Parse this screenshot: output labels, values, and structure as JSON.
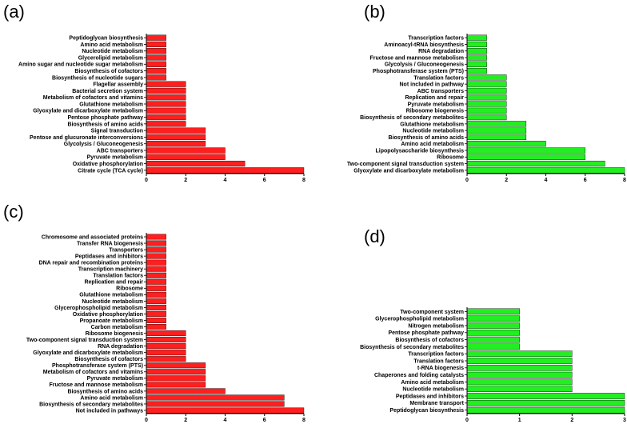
{
  "chart_data": [
    {
      "type": "bar",
      "orientation": "horizontal",
      "panel": "(a)",
      "bar_color": "#ff1f1f",
      "xlim": [
        0,
        8
      ],
      "xticks": [
        "0",
        "2",
        "4",
        "6",
        "8"
      ],
      "grid": false,
      "categories": [
        "Peptidoglycan biosynthesis",
        "Amino acid metabolism",
        "Nucleotide metabolism",
        "Glycerolipid metabolism",
        "Amino sugar and nucleotide sugar metabolism",
        "Biosynthesis of cofactors",
        "Biosynthesis of nucleotide sugars",
        "Flagellar assembly",
        "Bacterial secretion system",
        "Metabolism of cofactors and vitamins",
        "Glutathione metabolism",
        "Glyoxylate and dicarboxylate metabolism",
        "Pentose phosphate pathway",
        "Biosynthesis of amino acids",
        "Signal transduction",
        "Pentose and glucuronate interconversions",
        "Glycolysis / Gluconeogenesis",
        "ABC transporters",
        "Pyruvate metabolism",
        "Oxidative phosphorylation",
        "Citrate cycle (TCA cycle)"
      ],
      "values": [
        1,
        1,
        1,
        1,
        1,
        1,
        1,
        2,
        2,
        2,
        2,
        2,
        2,
        2,
        3,
        3,
        3,
        4,
        4,
        5,
        8
      ]
    },
    {
      "type": "bar",
      "orientation": "horizontal",
      "panel": "(b)",
      "bar_color": "#22ee22",
      "xlim": [
        0,
        8
      ],
      "xticks": [
        "0",
        "2",
        "4",
        "6",
        "8"
      ],
      "grid": false,
      "categories": [
        "Transcription factors",
        "Aminoacyl-tRNA biosynthesis",
        "RNA degradation",
        "Fructose and mannose metabolism",
        "Glycolysis / Gluconeogenesis",
        "Phosphotransferase system (PTS)",
        "Translation factors",
        "Not included in pathway",
        "ABC transporters",
        "Replication and repair",
        "Pyruvate metabolism",
        "Ribosome biogenesis",
        "Biosynthesis of secondary metabolites",
        "Glutathione metabolism",
        "Nucleotide metabolism",
        "Biosynthesis of amino acids",
        "Amino acid metabolism",
        "Lipopolysaccharide biosynthesis",
        "Ribosome",
        "Two-component signal transduction system",
        "Glyoxylate and dicarboxylate metabolism"
      ],
      "values": [
        1,
        1,
        1,
        1,
        1,
        1,
        2,
        2,
        2,
        2,
        2,
        2,
        2,
        3,
        3,
        3,
        4,
        6,
        6,
        7,
        8
      ]
    },
    {
      "type": "bar",
      "orientation": "horizontal",
      "panel": "(c)",
      "bar_color": "#ff1f1f",
      "xlim": [
        0,
        8
      ],
      "xticks": [
        "0",
        "2",
        "4",
        "6",
        "8"
      ],
      "grid": false,
      "categories": [
        "Chromosome and associated proteins",
        "Transfer RNA biogenesis",
        "Transporters",
        "Peptidases and inhibitors",
        "DNA repair and recombination proteins",
        "Transcription machinery",
        "Translation factors",
        "Replication and repair",
        "Ribosome",
        "Glutathione metabolism",
        "Nucleotide metabolism",
        "Glycerophospholipid metabolism",
        "Oxidative phosphorylation",
        "Propanoate metabolism",
        "Carbon metabolism",
        "Ribosome biogenesis",
        "Two-component signal transduction system",
        "RNA degradation",
        "Glyoxylate and dicarboxylate metabolism",
        "Biosynthesis of cofactors",
        "Phosphotransferase system (PTS)",
        "Metabolism of cofactors and vitamins",
        "Pyruvate metabolism",
        "Fructose and mannose metabolism",
        "Biosynthesis of amino acids",
        "Amino acid metabolism",
        "Biosynthesis of secondary metabolites",
        "Not included in pathways"
      ],
      "values": [
        1,
        1,
        1,
        1,
        1,
        1,
        1,
        1,
        1,
        1,
        1,
        1,
        1,
        1,
        1,
        2,
        2,
        2,
        2,
        2,
        3,
        3,
        3,
        3,
        4,
        7,
        7,
        8
      ]
    },
    {
      "type": "bar",
      "orientation": "horizontal",
      "panel": "(d)",
      "bar_color": "#22ee22",
      "xlim": [
        0,
        3
      ],
      "xticks": [
        "0",
        "1",
        "2",
        "3"
      ],
      "grid": false,
      "categories": [
        "Two-component system",
        "Glycerophospholipid metabolism",
        "Nitrogen metabolism",
        "Pentose phosphate pathway",
        "Biosynthesis of cofactors",
        "Biosynthesis of secondary metabolites",
        "Transcription factors",
        "Translation factors",
        "t-RNA biogenesis",
        "Chaperones and folding catalysts",
        "Amino acid metabolism",
        "Nucleotide metabolism",
        "Peptidases and inhibitors",
        "Membrane transport",
        "Peptidoglycan biosynthesis"
      ],
      "values": [
        1,
        1,
        1,
        1,
        1,
        1,
        2,
        2,
        2,
        2,
        2,
        2,
        3,
        3,
        3
      ]
    }
  ]
}
